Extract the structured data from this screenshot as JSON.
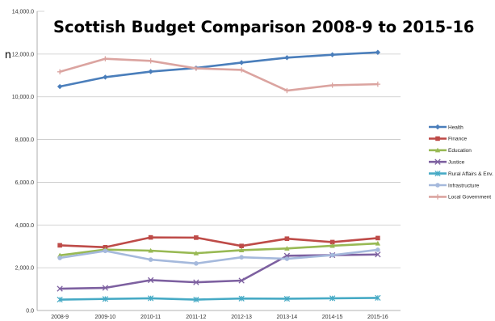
{
  "edge_text": "n",
  "chart_data": {
    "type": "line",
    "title": "Scottish Budget Comparison 2008-9 to 2015-16",
    "xlabel": "",
    "ylabel": "",
    "categories": [
      "2008-9",
      "2009-10",
      "2010-11",
      "2011-12",
      "2012-13",
      "2013-14",
      "2014-15",
      "2015-16"
    ],
    "ylim": [
      0,
      14000
    ],
    "yticks": [
      "0.0",
      "2,000.0",
      "4,000.0",
      "6,000.0",
      "8,000.0",
      "10,000.0",
      "12,000.0",
      "14,000.0"
    ],
    "grid": true,
    "legend_position": "right",
    "series": [
      {
        "name": "Health",
        "color": "#4a7ebb",
        "marker": "diamond",
        "values": [
          10480,
          10920,
          11180,
          11350,
          11600,
          11830,
          11970,
          12080
        ]
      },
      {
        "name": "Finance",
        "color": "#be4b48",
        "marker": "square",
        "values": [
          3050,
          2960,
          3420,
          3410,
          3020,
          3360,
          3200,
          3390
        ]
      },
      {
        "name": "Education",
        "color": "#98b954",
        "marker": "triangle",
        "values": [
          2580,
          2850,
          2800,
          2680,
          2820,
          2900,
          3030,
          3140
        ]
      },
      {
        "name": "Justice",
        "color": "#7d60a0",
        "marker": "x",
        "values": [
          1020,
          1060,
          1420,
          1320,
          1400,
          2560,
          2590,
          2620
        ]
      },
      {
        "name": "Rural Affairs & Env.",
        "color": "#46aac5",
        "marker": "star",
        "values": [
          510,
          540,
          570,
          510,
          560,
          550,
          570,
          590
        ]
      },
      {
        "name": "Infrastructure",
        "color": "#a5b9dc",
        "marker": "circle",
        "values": [
          2460,
          2790,
          2380,
          2200,
          2490,
          2420,
          2590,
          2840
        ]
      },
      {
        "name": "Local Government",
        "color": "#dba4a0",
        "marker": "plus",
        "values": [
          11170,
          11780,
          11680,
          11330,
          11260,
          10290,
          10540,
          10590
        ]
      }
    ]
  }
}
